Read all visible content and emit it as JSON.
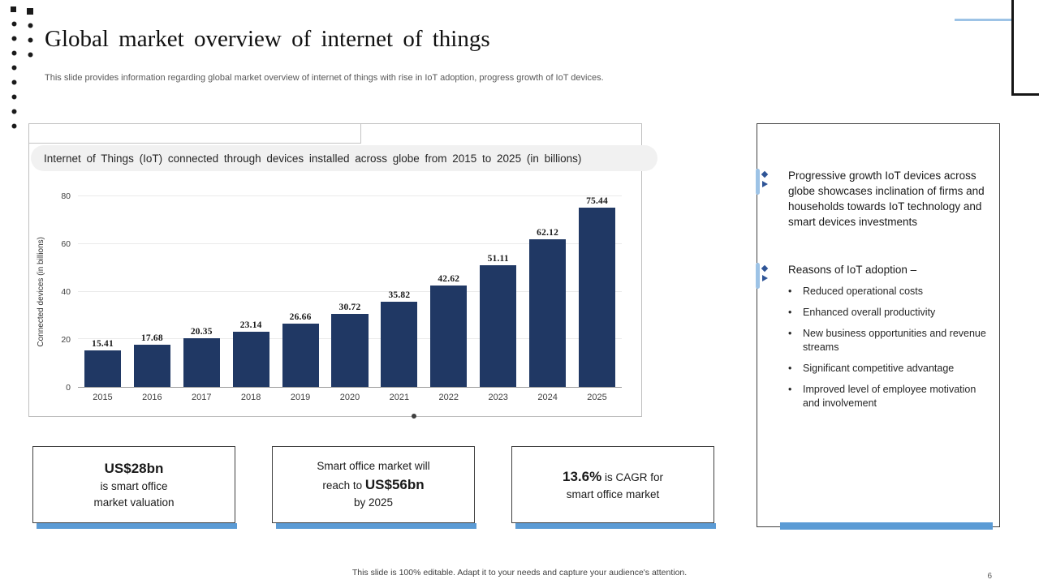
{
  "header": {
    "title": "Global market overview of internet of things",
    "subtitle": "This slide provides information regarding global market overview of internet of things with rise in IoT adoption, progress growth of IoT devices."
  },
  "chart_data": {
    "type": "bar",
    "title": "Internet of Things (IoT) connected through devices installed across globe from 2015 to 2025 (in billions)",
    "categories": [
      "2015",
      "2016",
      "2017",
      "2018",
      "2019",
      "2020",
      "2021",
      "2022",
      "2023",
      "2024",
      "2025"
    ],
    "values": [
      15.41,
      17.68,
      20.35,
      23.14,
      26.66,
      30.72,
      35.82,
      42.62,
      51.11,
      62.12,
      75.44
    ],
    "xlabel": "",
    "ylabel": "Connected devices (in billions)",
    "ylim": [
      0,
      80
    ],
    "yticks": [
      0,
      20,
      40,
      60,
      80
    ],
    "bar_color": "#203864",
    "grid": true,
    "legend": "none"
  },
  "stat_boxes": [
    {
      "lines": [
        [
          {
            "text": "US$28bn",
            "bold": true,
            "large": true
          }
        ],
        [
          {
            "text": "is smart office",
            "bold": false
          }
        ],
        [
          {
            "text": "market valuation",
            "bold": false
          }
        ]
      ]
    },
    {
      "lines": [
        [
          {
            "text": "Smart office market will",
            "bold": false
          }
        ],
        [
          {
            "text": "reach to ",
            "bold": false
          },
          {
            "text": "US$56bn",
            "bold": true,
            "large": true
          }
        ],
        [
          {
            "text": "by 2025",
            "bold": false
          }
        ]
      ]
    },
    {
      "lines": [
        [
          {
            "text": "13.6%",
            "bold": true,
            "large": true
          },
          {
            "text": " is CAGR for",
            "bold": false
          }
        ],
        [
          {
            "text": "smart office market",
            "bold": false
          }
        ]
      ]
    }
  ],
  "right_panel": {
    "sections": [
      {
        "text": "Progressive growth IoT devices across globe showcases inclination of firms and households towards IoT technology and smart devices investments",
        "bullets": []
      },
      {
        "text": "Reasons of IoT adoption –",
        "bullets": [
          "Reduced operational costs",
          "Enhanced overall productivity",
          "New business opportunities and revenue streams",
          "Significant competitive advantage",
          "Improved level of employee motivation and involvement"
        ]
      }
    ]
  },
  "footer": {
    "note": "This slide is 100% editable. Adapt it to your needs and capture your audience's attention.",
    "page_number": "6"
  },
  "colors": {
    "bar": "#203864",
    "accent": "#5B9BD5",
    "marker_dark": "#2F5597",
    "marker_light": "#9DC3E6"
  }
}
